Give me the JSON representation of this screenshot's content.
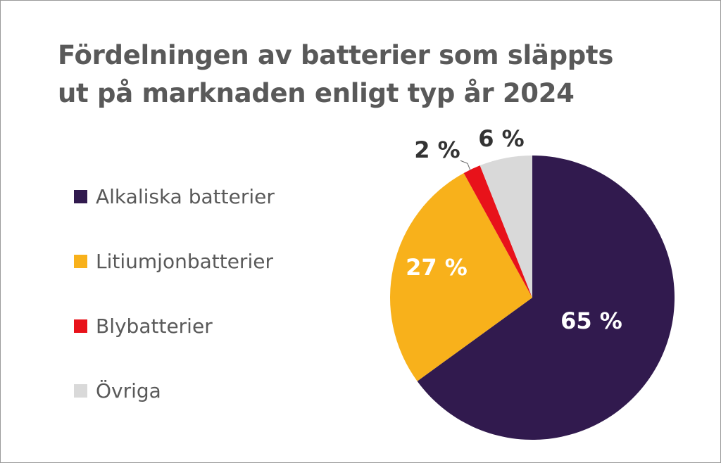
{
  "chart_data": {
    "type": "pie",
    "title": "Fördelningen av batterier som släppts ut på marknaden enligt typ år 2024",
    "title_lines": [
      "Fördelningen av batterier som släppts",
      "ut på marknaden enligt typ år 2024"
    ],
    "slices": [
      {
        "name": "Alkaliska batterier",
        "value": 65,
        "label": "65 %",
        "color": "#311a4e",
        "label_color": "#ffffff"
      },
      {
        "name": "Litiumjonbatterier",
        "value": 27,
        "label": "27 %",
        "color": "#f8b11b",
        "label_color": "#ffffff"
      },
      {
        "name": "Blybatterier",
        "value": 2,
        "label": "2 %",
        "color": "#e8121a",
        "label_color": "#333333"
      },
      {
        "name": "Övriga",
        "value": 6,
        "label": "6 %",
        "color": "#d9d9d9",
        "label_color": "#333333"
      }
    ],
    "legend_position": "left"
  }
}
